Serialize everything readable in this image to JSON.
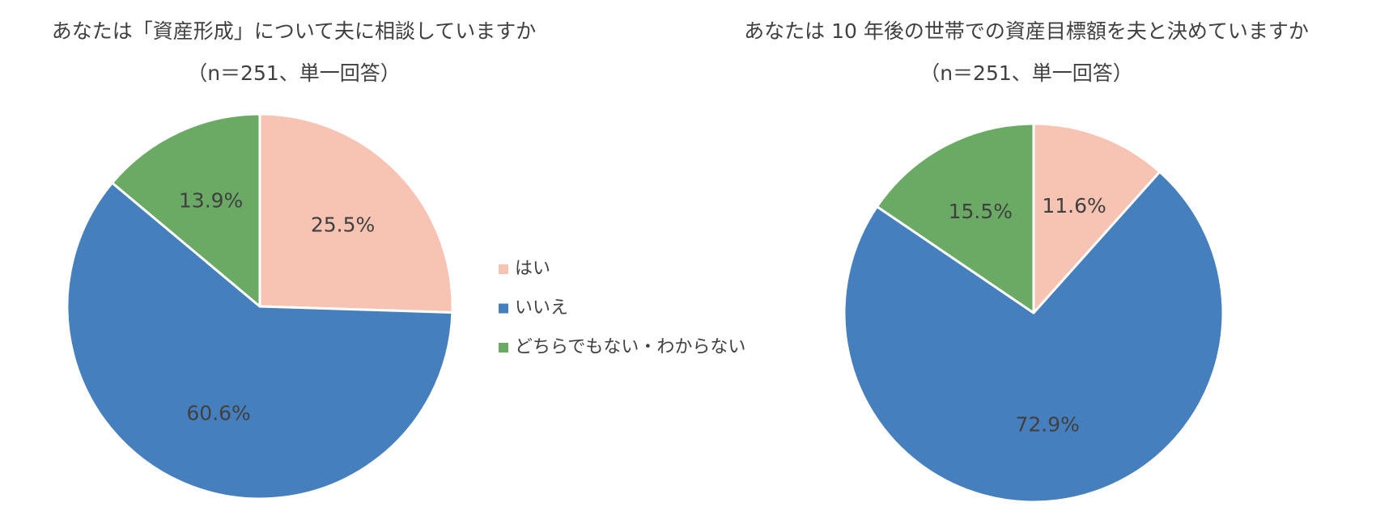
{
  "chart_data": [
    {
      "type": "pie",
      "title": "あなたは「資産形成」について夫に相談していますか",
      "subtitle": "（n＝251、単一回答）",
      "categories": [
        "はい",
        "いいえ",
        "どちらでもない・わからない"
      ],
      "values": [
        25.5,
        60.6,
        13.9
      ],
      "value_labels": [
        "25.5%",
        "60.6%",
        "13.9%"
      ],
      "colors": [
        "#f7c3b2",
        "#467fbd",
        "#6aaa64"
      ],
      "legend": "right"
    },
    {
      "type": "pie",
      "title": "あなたは 10 年後の世帯での資産目標額を夫と決めていますか",
      "subtitle": "（n＝251、単一回答）",
      "values": [
        11.6,
        72.9,
        15.5
      ],
      "value_labels": [
        "11.6%",
        "72.9%",
        "15.5%"
      ],
      "colors": [
        "#f7c3b2",
        "#467fbd",
        "#6aaa64"
      ]
    }
  ]
}
